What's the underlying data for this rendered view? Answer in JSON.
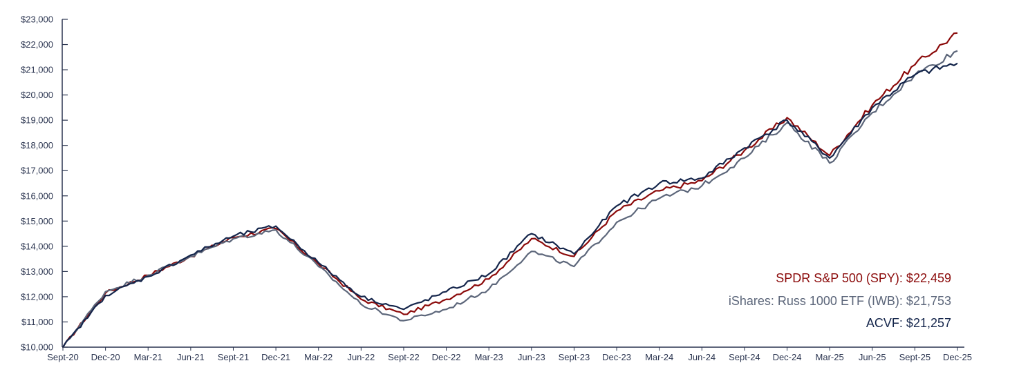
{
  "chart_data": {
    "type": "line",
    "x_labels": [
      "Sept-20",
      "Dec-20",
      "Mar-21",
      "Jun-21",
      "Sept-21",
      "Dec-21",
      "Mar-22",
      "Jun-22",
      "Sept-22",
      "Dec-22",
      "Mar-23",
      "Jun-23",
      "Sept-23",
      "Dec-23",
      "Mar-24",
      "Jun-24",
      "Sept-24",
      "Dec-24",
      "Mar-25",
      "Jun-25",
      "Sept-25",
      "Dec-25"
    ],
    "y_ticks": [
      "$10,000",
      "$11,000",
      "$12,000",
      "$13,000",
      "$14,000",
      "$15,000",
      "$16,000",
      "$17,000",
      "$18,000",
      "$19,000",
      "$20,000",
      "$21,000",
      "$22,000",
      "$23,000"
    ],
    "ylim": [
      10000,
      23000
    ],
    "grid": false,
    "legend_position": "bottom-right",
    "series": [
      {
        "name": "SPDR S&P 500 (SPY)",
        "label": "SPDR S&P 500 (SPY): $22,459",
        "color": "#8b0a0a",
        "values": [
          10000,
          12150,
          12850,
          13600,
          14350,
          14700,
          13300,
          11900,
          11300,
          11900,
          12700,
          14300,
          13600,
          15400,
          16200,
          16600,
          17800,
          19100,
          17600,
          19600,
          21200,
          22459
        ]
      },
      {
        "name": "iShares: Russ 1000 ETF (IWB)",
        "label": "iShares: Russ 1000 ETF (IWB): $21,753",
        "color": "#5c667a",
        "values": [
          10000,
          12200,
          12850,
          13600,
          14300,
          14650,
          13200,
          11700,
          11050,
          11500,
          12300,
          13800,
          13200,
          14950,
          15900,
          16400,
          17500,
          18900,
          17300,
          19300,
          20800,
          21753
        ]
      },
      {
        "name": "ACVF",
        "label": "ACVF: $21,257",
        "color": "#14254b",
        "values": [
          10000,
          12050,
          12800,
          13650,
          14400,
          14800,
          13350,
          12000,
          11500,
          12200,
          12900,
          14500,
          13700,
          15600,
          16500,
          16700,
          17900,
          19000,
          17500,
          19500,
          20800,
          21257
        ]
      }
    ]
  }
}
